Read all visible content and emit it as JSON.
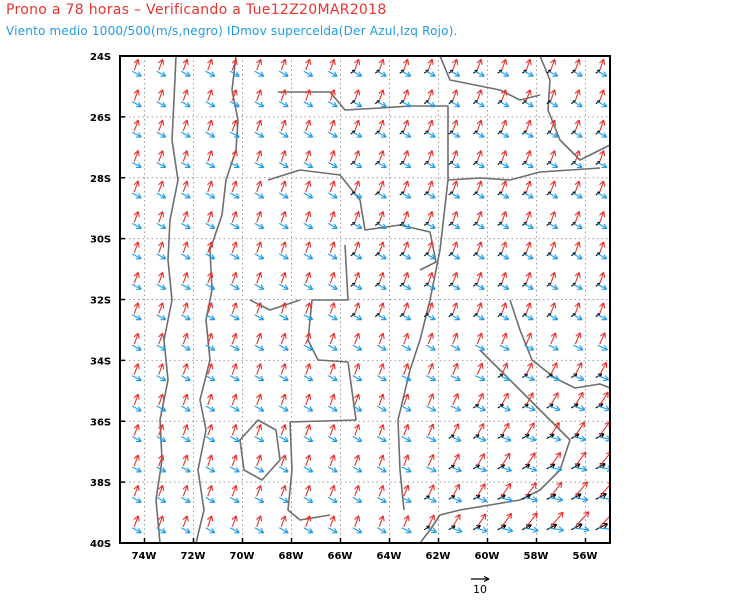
{
  "title": "Prono a 78 horas – Verificando a Tue12Z20MAR2018",
  "subtitle": "Viento medio 1000/500(m/s,negro) IDmov supercelda(Der Azul,Izq Rojo).",
  "axes": {
    "lat_labels": [
      "24S",
      "26S",
      "28S",
      "30S",
      "32S",
      "34S",
      "36S",
      "38S",
      "40S"
    ],
    "lon_labels": [
      "74W",
      "72W",
      "70W",
      "68W",
      "66W",
      "64W",
      "62W",
      "60W",
      "58W",
      "56W"
    ]
  },
  "reference_vector": {
    "label": "10",
    "value": 10
  },
  "colors": {
    "mean_wind": "#000000",
    "right_mover": "#1e9be8",
    "left_mover": "#e8322d",
    "borders": "#6e6e6e",
    "grid": "#9a9a9a"
  },
  "extent": {
    "lon_min": -75,
    "lon_max": -55,
    "lat_min": -40,
    "lat_max": -24
  }
}
